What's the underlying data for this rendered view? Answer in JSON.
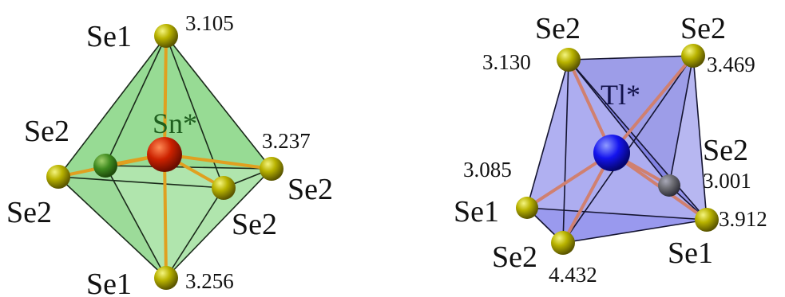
{
  "polyhedra": [
    {
      "center_label": "Sn*",
      "center_color": "#cc2200",
      "face_color": "#5fbf5f",
      "bond_color": "#e0a020",
      "atom_color": "#b8b800",
      "atom_labels": [
        "Se1",
        "Se2",
        "Se2",
        "Se2",
        "Se2",
        "Se1"
      ],
      "distances": [
        "3.105",
        "3.237",
        "3.256"
      ]
    },
    {
      "center_label": "Tl*",
      "center_color": "#1111ee",
      "face_color": "#6060e0",
      "bond_color": "#d08070",
      "atom_color": "#b8b800",
      "atom_labels": [
        "Se2",
        "Se2",
        "Se2",
        "Se1",
        "Se2",
        "Se1"
      ],
      "distances": [
        "3.130",
        "3.469",
        "3.001",
        "3.085",
        "3.912",
        "4.432"
      ]
    }
  ]
}
